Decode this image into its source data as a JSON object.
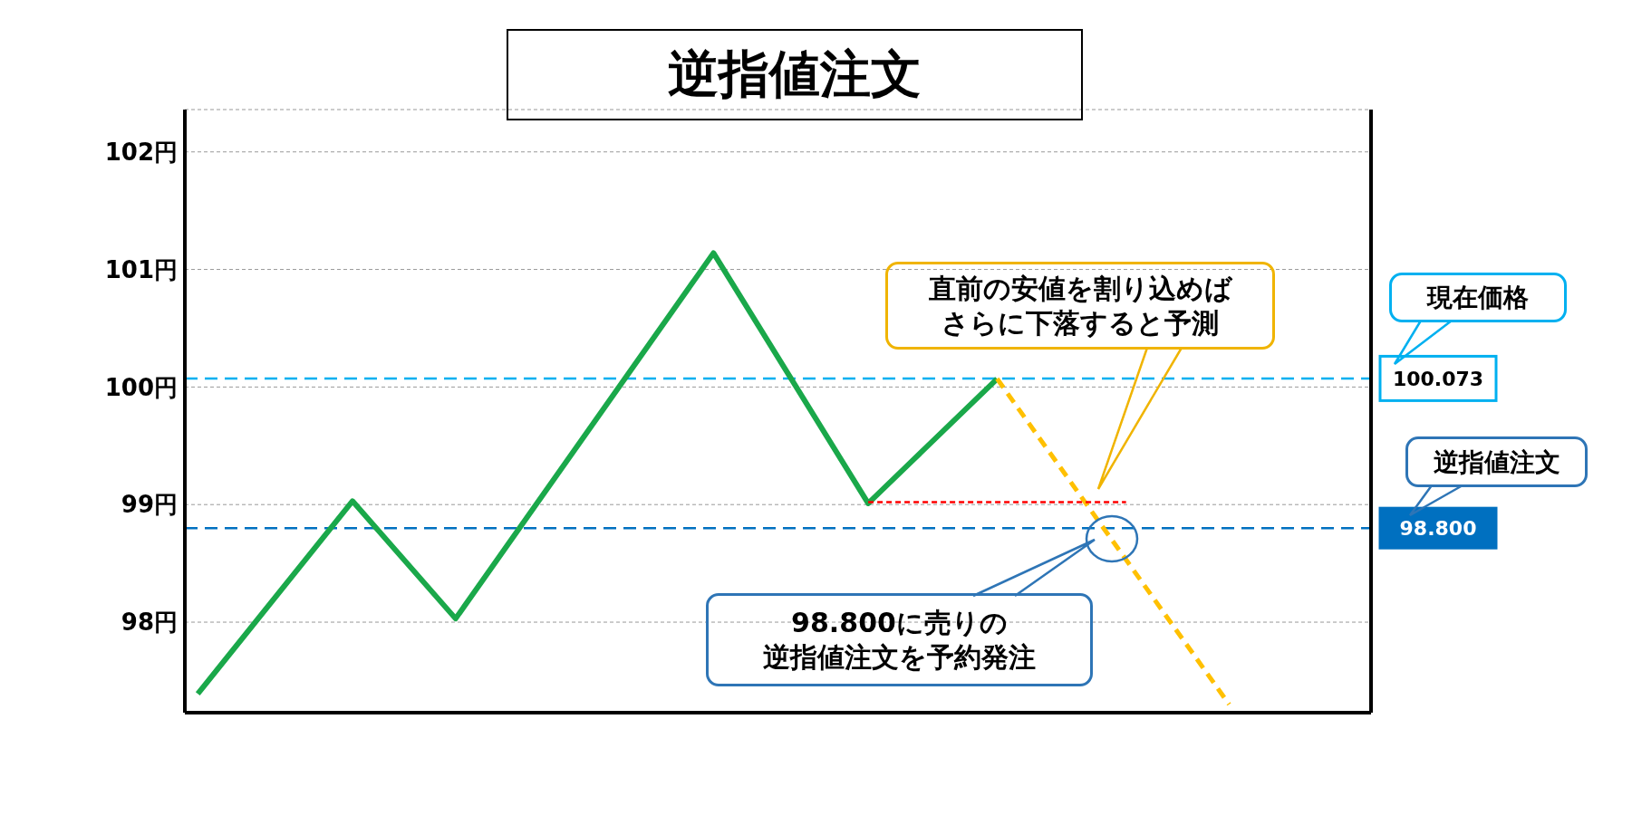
{
  "chart_data": {
    "type": "line",
    "title": "逆指値注文",
    "categories": [
      null,
      null,
      null,
      null,
      null,
      null,
      null,
      null,
      null,
      null,
      null,
      null,
      null,
      null,
      null,
      null,
      null,
      null,
      null,
      null,
      null,
      null,
      null,
      null,
      null,
      null,
      null,
      null,
      null,
      null,
      null,
      null,
      null,
      null,
      null,
      null,
      null,
      null,
      null,
      null,
      null,
      null,
      null,
      null,
      null,
      null
    ],
    "ylim": [
      97.23,
      102.36
    ],
    "yticks": [
      {
        "value": 98,
        "label": "98円"
      },
      {
        "value": 99,
        "label": "99円"
      },
      {
        "value": 100,
        "label": "100円"
      },
      {
        "value": 101,
        "label": "101円"
      },
      {
        "value": 102,
        "label": "102円"
      }
    ],
    "tick_labels": "y",
    "grid": "y",
    "series": [
      {
        "color": "#1aa84a",
        "line_style": "solid",
        "values": [
          97.39,
          null,
          null,
          null,
          null,
          null,
          99.03,
          null,
          null,
          null,
          98.03,
          null,
          null,
          null,
          null,
          null,
          null,
          null,
          null,
          null,
          101.14,
          null,
          null,
          null,
          null,
          null,
          99.01,
          null,
          null,
          null,
          null,
          100.07,
          null,
          null,
          null,
          null,
          null,
          null,
          null,
          null,
          null,
          null,
          null,
          null,
          null,
          null
        ]
      },
      {
        "color": "#ffc000",
        "line_style": "dashed",
        "values": [
          null,
          null,
          null,
          null,
          null,
          null,
          null,
          null,
          null,
          null,
          null,
          null,
          null,
          null,
          null,
          null,
          null,
          null,
          null,
          null,
          null,
          null,
          null,
          null,
          null,
          null,
          null,
          null,
          null,
          null,
          null,
          100.07,
          null,
          null,
          null,
          null,
          null,
          null,
          null,
          null,
          97.3,
          null,
          null,
          null,
          null,
          null
        ]
      },
      {
        "color": "#ff0000",
        "line_style": "dashed",
        "values": [
          null,
          null,
          null,
          null,
          null,
          null,
          null,
          null,
          null,
          null,
          null,
          null,
          null,
          null,
          null,
          null,
          null,
          null,
          null,
          null,
          null,
          null,
          null,
          null,
          null,
          null,
          99.02,
          null,
          null,
          null,
          null,
          null,
          null,
          null,
          null,
          null,
          99.02,
          null,
          null,
          null,
          null,
          null,
          null,
          null,
          null,
          null
        ]
      }
    ],
    "ref_lines": [
      {
        "axis": "y",
        "value": 100.073,
        "label": "100.073",
        "color": "#00b0f0",
        "line_style": "dashed"
      },
      {
        "axis": "y",
        "value": 98.8,
        "label": "98.800",
        "color": "#0070c0",
        "line_style": "dashed"
      }
    ],
    "annotations": [
      "直前の安値を割り込めばさらに下落すると予測",
      "現在価格",
      "逆指値注文",
      "98.800に売りの逆指値注文を予約発注"
    ]
  }
}
